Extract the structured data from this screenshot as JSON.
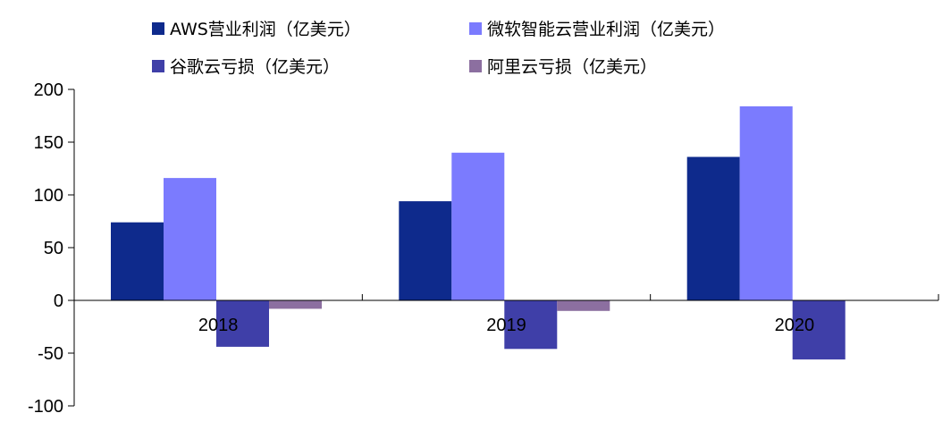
{
  "chart_data": {
    "type": "bar",
    "categories": [
      "2018",
      "2019",
      "2020"
    ],
    "series": [
      {
        "name": "AWS营业利润（亿美元）",
        "values": [
          74,
          94,
          136
        ],
        "color": "#0e2a8c"
      },
      {
        "name": "微软智能云营业利润（亿美元）",
        "values": [
          116,
          140,
          184
        ],
        "color": "#7b7bfe"
      },
      {
        "name": "谷歌云亏损（亿美元）",
        "values": [
          -44,
          -46,
          -56
        ],
        "color": "#3f3fa8"
      },
      {
        "name": "阿里云亏损（亿美元）",
        "values": [
          -8,
          -10,
          0
        ],
        "color": "#8c6fa0"
      }
    ],
    "ylim": [
      -100,
      200
    ],
    "yticks": [
      200,
      150,
      100,
      50,
      0,
      -50,
      -100
    ],
    "grid": false,
    "legend_position": "top"
  }
}
